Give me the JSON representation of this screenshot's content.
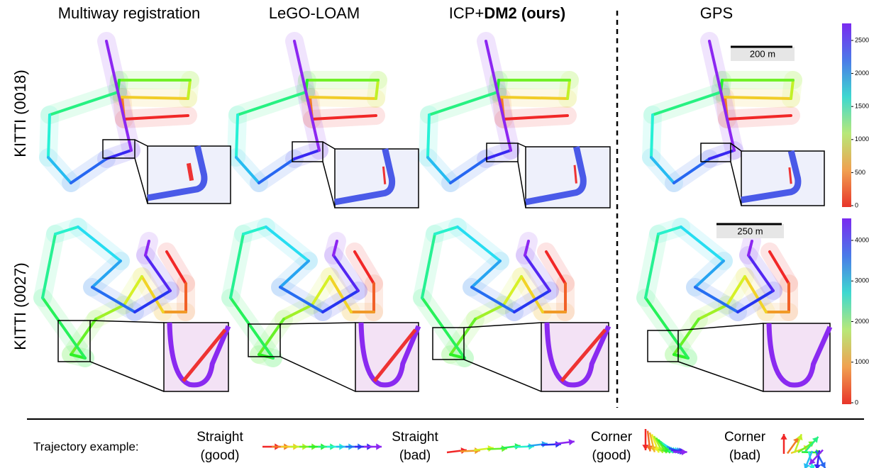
{
  "header": {
    "columns": [
      {
        "text": "Multiway registration"
      },
      {
        "text": "LeGO-LOAM"
      },
      {
        "text": "ICP+",
        "bold": "DM2 (ours)"
      },
      {
        "text": "GPS"
      }
    ]
  },
  "rows": [
    "KITTI (0018)",
    "KITTI (0027)"
  ],
  "scale_bars": [
    "200 m",
    "250 m"
  ],
  "colorbars": [
    {
      "ticks": [
        0,
        500,
        1000,
        1500,
        2000,
        2500
      ]
    },
    {
      "ticks": [
        0,
        1000,
        2000,
        3000,
        4000
      ]
    }
  ],
  "legend": {
    "title": "Trajectory example:",
    "items": [
      {
        "label": "Straight",
        "note": "(good)"
      },
      {
        "label": "Straight",
        "note": "(bad)"
      },
      {
        "label": "Corner",
        "note": "(good)"
      },
      {
        "label": "Corner",
        "note": "(bad)"
      }
    ]
  }
}
